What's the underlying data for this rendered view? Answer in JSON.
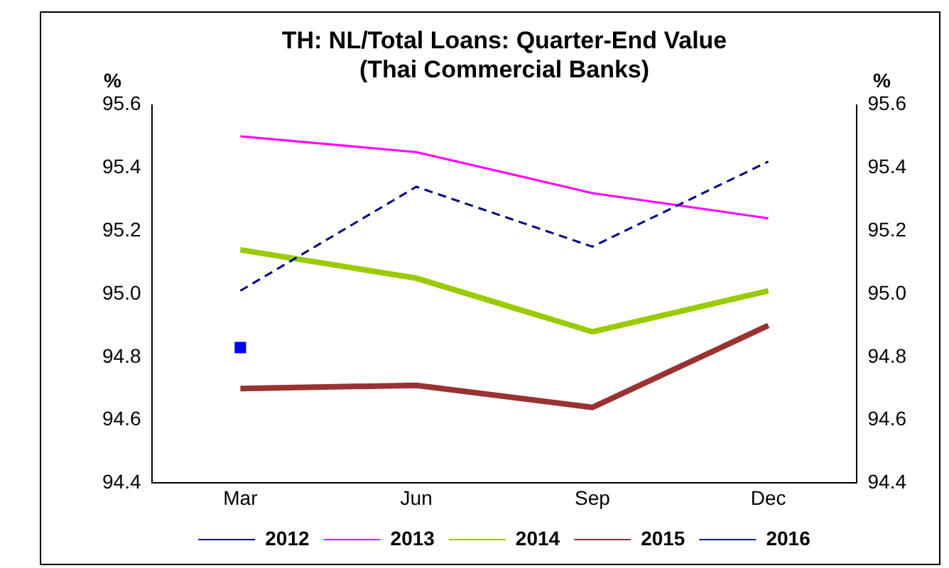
{
  "chart_data": {
    "type": "line",
    "title": "TH: NL/Total Loans: Quarter-End Value\n(Thai Commercial Banks)",
    "ylabel": "%",
    "y2label": "%",
    "categories": [
      "Mar",
      "Jun",
      "Sep",
      "Dec"
    ],
    "series": [
      {
        "name": "2012",
        "color": "#000080",
        "line_style": "dashed",
        "values": [
          95.01,
          95.34,
          95.15,
          95.42
        ]
      },
      {
        "name": "2013",
        "color": "#ff00ff",
        "values": [
          95.5,
          95.45,
          95.32,
          95.24
        ]
      },
      {
        "name": "2014",
        "color": "#99cc00",
        "values": [
          95.14,
          95.05,
          94.88,
          95.01
        ]
      },
      {
        "name": "2015",
        "color": "#993333",
        "values": [
          94.7,
          94.71,
          94.64,
          94.9
        ]
      },
      {
        "name": "2016",
        "color": "#0000ff",
        "marker": "square",
        "values": [
          94.83,
          null,
          null,
          null
        ]
      }
    ],
    "ylim": [
      94.4,
      95.6
    ],
    "yticks": [
      94.4,
      94.6,
      94.8,
      {
        "value": 95,
        "label": "95.0"
      },
      95.2,
      95.4,
      95.6
    ],
    "y2lim": [
      94.4,
      95.6
    ],
    "y2ticks": [
      94.4,
      94.6,
      94.8,
      {
        "value": 95,
        "label": "95.0"
      },
      95.2,
      95.4,
      95.6
    ],
    "grid": false,
    "legend": "bottom"
  }
}
